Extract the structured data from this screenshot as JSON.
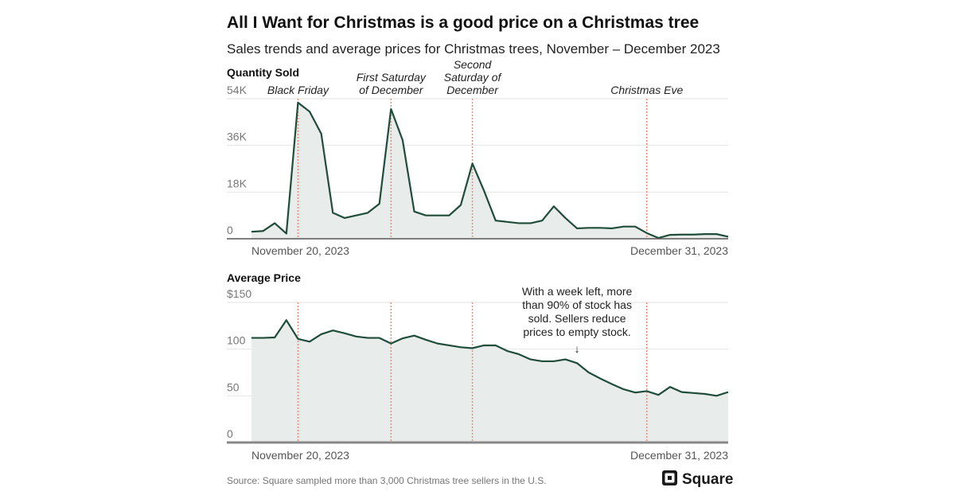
{
  "title": "All I Want for Christmas is a good price on a Christmas tree",
  "subtitle": "Sales trends and average prices for Christmas trees, November – December 2023",
  "source": "Source: Square sampled more than 3,000 Christmas tree sellers in the U.S.",
  "logo": {
    "text": "Square",
    "icon": "square-logo-icon"
  },
  "colors": {
    "line": "#1f4d3a",
    "fill": "#e8ecea",
    "event_line": "#f08a7a",
    "grid": "#e2e2e2",
    "axis": "#555555"
  },
  "chart_data": [
    {
      "type": "area",
      "title": "Quantity Sold",
      "x_start": "2023-11-20",
      "x_end": "2023-12-31",
      "x_tick_labels": [
        "November 20, 2023",
        "December 31, 2023"
      ],
      "ylim": [
        0,
        54000
      ],
      "y_ticks": [
        0,
        18000,
        36000,
        54000
      ],
      "y_tick_labels": [
        "0",
        "18K",
        "36K",
        "54K"
      ],
      "grid": true,
      "x": [
        "2023-11-20",
        "2023-11-21",
        "2023-11-22",
        "2023-11-23",
        "2023-11-24",
        "2023-11-25",
        "2023-11-26",
        "2023-11-27",
        "2023-11-28",
        "2023-11-29",
        "2023-11-30",
        "2023-12-01",
        "2023-12-02",
        "2023-12-03",
        "2023-12-04",
        "2023-12-05",
        "2023-12-06",
        "2023-12-07",
        "2023-12-08",
        "2023-12-09",
        "2023-12-10",
        "2023-12-11",
        "2023-12-12",
        "2023-12-13",
        "2023-12-14",
        "2023-12-15",
        "2023-12-16",
        "2023-12-17",
        "2023-12-18",
        "2023-12-19",
        "2023-12-20",
        "2023-12-21",
        "2023-12-22",
        "2023-12-23",
        "2023-12-24",
        "2023-12-25",
        "2023-12-26",
        "2023-12-27",
        "2023-12-28",
        "2023-12-29",
        "2023-12-30",
        "2023-12-31"
      ],
      "values": [
        2700,
        3000,
        6000,
        2000,
        52500,
        49000,
        40500,
        10000,
        8000,
        9000,
        10000,
        13500,
        50000,
        38000,
        10500,
        9000,
        9000,
        9000,
        13000,
        29000,
        18500,
        7000,
        6500,
        6000,
        6000,
        7000,
        12500,
        8000,
        4000,
        4200,
        4200,
        4000,
        4700,
        4700,
        2200,
        300,
        1500,
        1600,
        1600,
        1800,
        1800,
        800
      ],
      "events": [
        {
          "date": "2023-11-24",
          "label": [
            "Black Friday"
          ]
        },
        {
          "date": "2023-12-02",
          "label": [
            "First Saturday",
            "of December"
          ]
        },
        {
          "date": "2023-12-09",
          "label": [
            "Second",
            "Saturday of",
            "December"
          ]
        },
        {
          "date": "2023-12-24",
          "label": [
            "Christmas Eve"
          ]
        }
      ]
    },
    {
      "type": "area",
      "title": "Average Price",
      "x_start": "2023-11-20",
      "x_end": "2023-12-31",
      "x_tick_labels": [
        "November 20, 2023",
        "December 31, 2023"
      ],
      "ylim": [
        0,
        150
      ],
      "y_ticks": [
        0,
        50,
        100,
        150
      ],
      "y_tick_labels": [
        "0",
        "50",
        "100",
        "$150"
      ],
      "grid": true,
      "values": [
        112,
        112,
        112.5,
        131,
        111,
        108,
        116,
        120,
        117,
        113.5,
        112,
        112,
        106,
        111.5,
        114.5,
        110,
        106,
        104,
        102,
        101,
        104,
        104,
        98,
        94.5,
        89,
        87,
        87,
        89,
        85,
        75,
        68.5,
        62.5,
        57,
        53.5,
        55,
        51,
        59.5,
        54,
        53,
        52,
        50,
        54
      ],
      "event_dates": [
        "2023-11-24",
        "2023-12-02",
        "2023-12-09",
        "2023-12-24"
      ],
      "annotation": {
        "date": "2023-12-18",
        "lines": [
          "With a week left, more",
          "than 90% of stock has",
          "sold. Sellers reduce",
          "prices to empty stock."
        ],
        "arrow": "↓"
      }
    }
  ]
}
